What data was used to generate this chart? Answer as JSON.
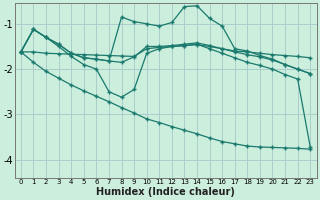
{
  "xlabel": "Humidex (Indice chaleur)",
  "bg_color": "#cceedd",
  "grid_color": "#aacccc",
  "line_color": "#1a7a6e",
  "xlim": [
    -0.5,
    23.5
  ],
  "ylim": [
    -4.4,
    -0.55
  ],
  "yticks": [
    -4,
    -3,
    -2,
    -1
  ],
  "xticks": [
    0,
    1,
    2,
    3,
    4,
    5,
    6,
    7,
    8,
    9,
    10,
    11,
    12,
    13,
    14,
    15,
    16,
    17,
    18,
    19,
    20,
    21,
    22,
    23
  ],
  "line1_x": [
    0,
    1,
    2,
    3,
    4,
    5,
    6,
    7,
    8,
    9,
    10,
    11,
    12,
    13,
    14,
    15,
    16,
    17,
    18,
    19,
    20,
    21,
    22,
    23
  ],
  "line1_y": [
    -1.62,
    -1.62,
    -1.65,
    -1.66,
    -1.67,
    -1.68,
    -1.69,
    -1.7,
    -1.71,
    -1.72,
    -1.55,
    -1.52,
    -1.5,
    -1.48,
    -1.46,
    -1.5,
    -1.55,
    -1.6,
    -1.62,
    -1.65,
    -1.68,
    -1.7,
    -1.72,
    -1.75
  ],
  "line2_x": [
    0,
    1,
    2,
    3,
    4,
    5,
    6,
    7,
    8,
    9,
    10,
    11,
    12,
    13,
    14,
    15,
    16,
    17,
    18,
    19,
    20,
    21,
    22,
    23
  ],
  "line2_y": [
    -1.62,
    -1.12,
    -1.3,
    -1.45,
    -1.65,
    -1.75,
    -1.78,
    -1.82,
    -1.85,
    -1.73,
    -1.5,
    -1.5,
    -1.48,
    -1.45,
    -1.42,
    -1.48,
    -1.55,
    -1.62,
    -1.68,
    -1.73,
    -1.8,
    -1.9,
    -2.0,
    -2.1
  ],
  "line3_x": [
    0,
    1,
    2,
    3,
    4,
    5,
    6,
    7,
    8,
    9,
    10,
    11,
    12,
    13,
    14,
    15,
    16,
    17,
    18,
    19,
    20,
    21,
    22,
    23
  ],
  "line3_y": [
    -1.62,
    -1.12,
    -1.3,
    -1.5,
    -1.72,
    -1.9,
    -2.0,
    -2.5,
    -2.62,
    -2.45,
    -1.65,
    -1.55,
    -1.5,
    -1.48,
    -1.45,
    -1.55,
    -1.65,
    -1.75,
    -1.85,
    -1.92,
    -2.0,
    -2.12,
    -2.22,
    -3.72
  ],
  "line4_x": [
    0,
    1,
    2,
    3,
    4,
    5,
    6,
    7,
    8,
    9,
    10,
    11,
    12,
    13,
    14,
    15,
    16,
    17,
    18,
    19,
    20,
    21,
    22,
    23
  ],
  "line4_y": [
    -1.62,
    -1.85,
    -2.05,
    -2.2,
    -2.35,
    -2.48,
    -2.6,
    -2.72,
    -2.85,
    -2.97,
    -3.1,
    -3.18,
    -3.27,
    -3.35,
    -3.43,
    -3.52,
    -3.6,
    -3.65,
    -3.7,
    -3.72,
    -3.73,
    -3.74,
    -3.75,
    -3.77
  ],
  "peak_x": [
    0,
    1,
    2,
    3,
    4,
    5,
    6,
    7,
    8,
    9,
    10,
    11,
    12,
    13,
    14,
    15,
    16,
    17,
    18,
    19,
    20,
    21,
    22,
    23
  ],
  "peak_y": [
    -1.62,
    -1.12,
    -1.3,
    -1.45,
    -1.65,
    -1.75,
    -1.78,
    -1.82,
    -0.85,
    -0.95,
    -1.0,
    -1.05,
    -0.97,
    -0.62,
    -0.6,
    -0.88,
    -1.05,
    -1.55,
    -1.6,
    -1.7,
    -1.78,
    -1.9,
    -2.0,
    -2.1
  ]
}
